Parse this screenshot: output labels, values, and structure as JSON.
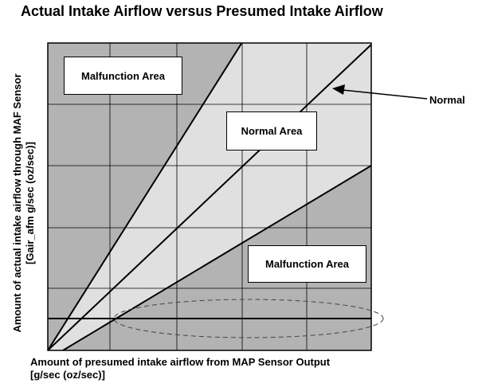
{
  "title": "Actual Intake Airflow versus Presumed Intake Airflow",
  "y_axis_label": {
    "line1": "Amount of actual intake airflow through MAF Sensor",
    "line2": "[Gair_afm g/sec (oz/sec)]"
  },
  "x_axis_label": {
    "line1": "Amount of presumed intake airflow from MAP Sensor Output",
    "line2": "[g/sec (oz/sec)]"
  },
  "regions": {
    "malfunction_upper": "Malfunction Area",
    "normal": "Normal Area",
    "malfunction_lower": "Malfunction Area"
  },
  "callout": {
    "normal_line": "Normal"
  },
  "colors": {
    "malfunction": "#b3b3b3",
    "normal": "#e0e0e0",
    "grid": "#000000"
  }
}
